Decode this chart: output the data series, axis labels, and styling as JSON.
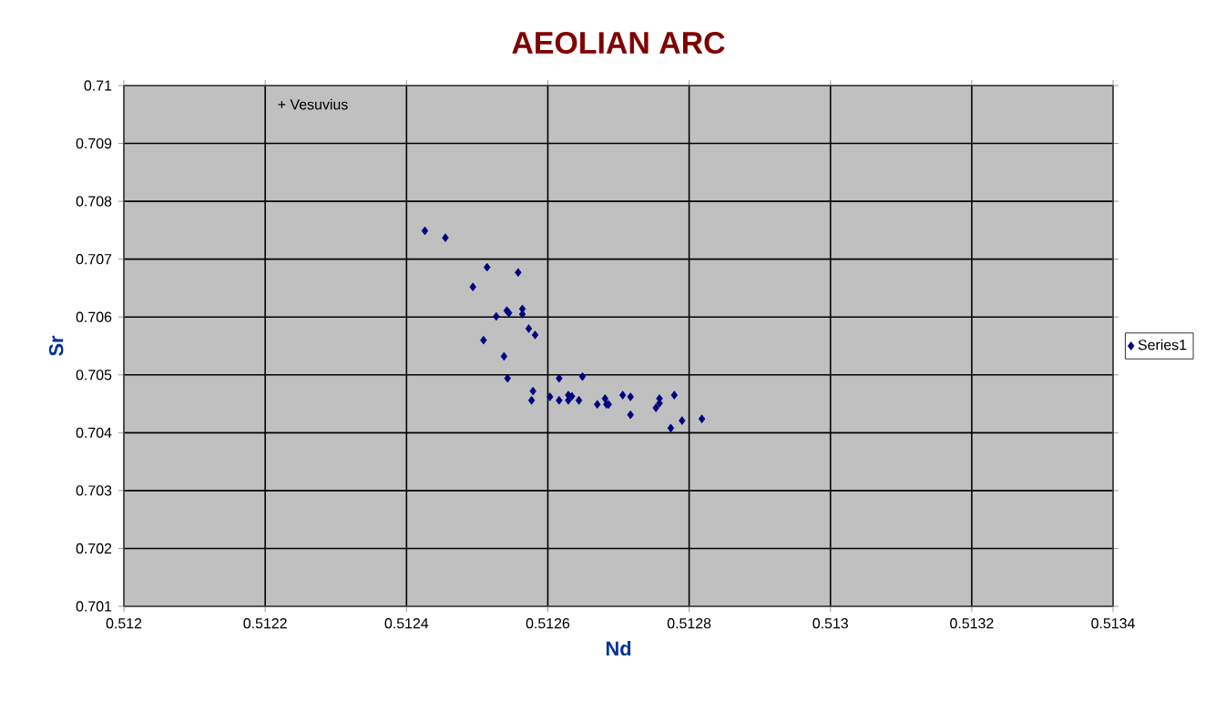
{
  "chart_data": {
    "type": "scatter",
    "title": "AEOLIAN ARC",
    "xlabel": "Nd",
    "ylabel": "Sr",
    "annotations": [
      "+ Vesuvius"
    ],
    "x": [
      0.512426,
      0.512455,
      0.512514,
      0.512558,
      0.512494,
      0.512527,
      0.512542,
      0.512545,
      0.512564,
      0.512564,
      0.512573,
      0.512582,
      0.512509,
      0.512538,
      0.512543,
      0.512579,
      0.512577,
      0.512603,
      0.512616,
      0.512616,
      0.512629,
      0.512634,
      0.512629,
      0.512644,
      0.512649,
      0.51267,
      0.512681,
      0.512683,
      0.512686,
      0.512706,
      0.512717,
      0.512717,
      0.512753,
      0.512758,
      0.512758,
      0.512779,
      0.512774,
      0.51279,
      0.512818
    ],
    "series": [
      {
        "name": "Series1",
        "color": "#000080",
        "values": [
          0.70749,
          0.70737,
          0.70686,
          0.70677,
          0.70652,
          0.70601,
          0.70611,
          0.70607,
          0.70614,
          0.70605,
          0.7058,
          0.70569,
          0.7056,
          0.70532,
          0.70494,
          0.70472,
          0.70456,
          0.70462,
          0.70494,
          0.70456,
          0.70465,
          0.70463,
          0.70456,
          0.70456,
          0.70497,
          0.70449,
          0.70459,
          0.70449,
          0.70449,
          0.70465,
          0.70462,
          0.70431,
          0.70443,
          0.70459,
          0.70451,
          0.70465,
          0.70408,
          0.70421,
          0.70424
        ]
      }
    ],
    "xlim": [
      0.512,
      0.5134
    ],
    "xticks": [
      0.512,
      0.5122,
      0.5124,
      0.5126,
      0.5128,
      0.513,
      0.5132,
      0.5134
    ],
    "ylim": [
      0.701,
      0.71
    ],
    "yticks": [
      0.701,
      0.702,
      0.703,
      0.704,
      0.705,
      0.706,
      0.707,
      0.708,
      0.709,
      0.71
    ],
    "grid": true,
    "legend": "right",
    "marker": "diamond"
  }
}
